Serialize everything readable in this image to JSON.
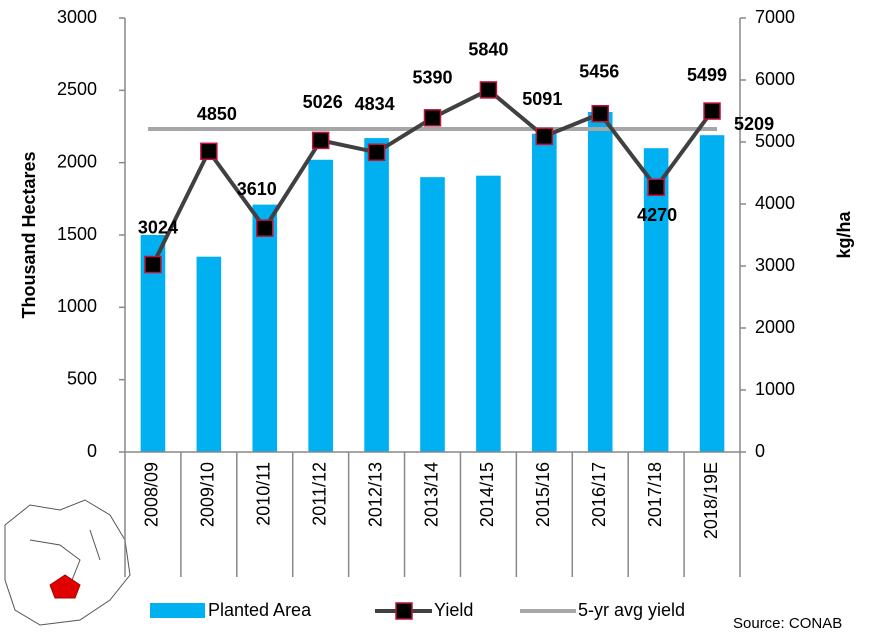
{
  "chart_data": {
    "type": "bar_line",
    "y_label": "Thousand Hectares",
    "y2_label": "kg/ha",
    "source": "Source: CONAB",
    "categories": [
      "2008/09",
      "2009/10",
      "2010/11",
      "2011/12",
      "2012/13",
      "2013/14",
      "2014/15",
      "2015/16",
      "2016/17",
      "2017/18",
      "2018/19E"
    ],
    "series": [
      {
        "name": "Planted Area",
        "type": "bar",
        "color": "#00b0f0",
        "values": [
          1500,
          1350,
          1710,
          2020,
          2170,
          1900,
          1910,
          2200,
          2350,
          2100,
          2190
        ]
      },
      {
        "name": "Yield",
        "type": "line",
        "axis": "y2",
        "color": "#404040",
        "marker_color": "#000000",
        "marker_edge": "#c0143c",
        "values": [
          3024,
          4850,
          3610,
          5026,
          4834,
          5390,
          5840,
          5091,
          5456,
          4270,
          5499
        ],
        "label_colors": [
          "#000000",
          "#000000",
          "#000000",
          "#000000",
          "#000000",
          "#000000",
          "#7b3fbf",
          "#1a8a3a",
          "#2e75b6",
          "#f5b800",
          "#e8174a"
        ]
      }
    ],
    "average": {
      "name": "5-yr avg yield",
      "value": 5209,
      "color": "#a6a6a6",
      "axis": "y2"
    },
    "ylim": [
      0,
      3000
    ],
    "yticks": [
      0,
      500,
      1000,
      1500,
      2000,
      2500,
      3000
    ],
    "y2lim": [
      0,
      7000
    ],
    "y2ticks": [
      0,
      1000,
      2000,
      3000,
      4000,
      5000,
      6000,
      7000
    ]
  }
}
